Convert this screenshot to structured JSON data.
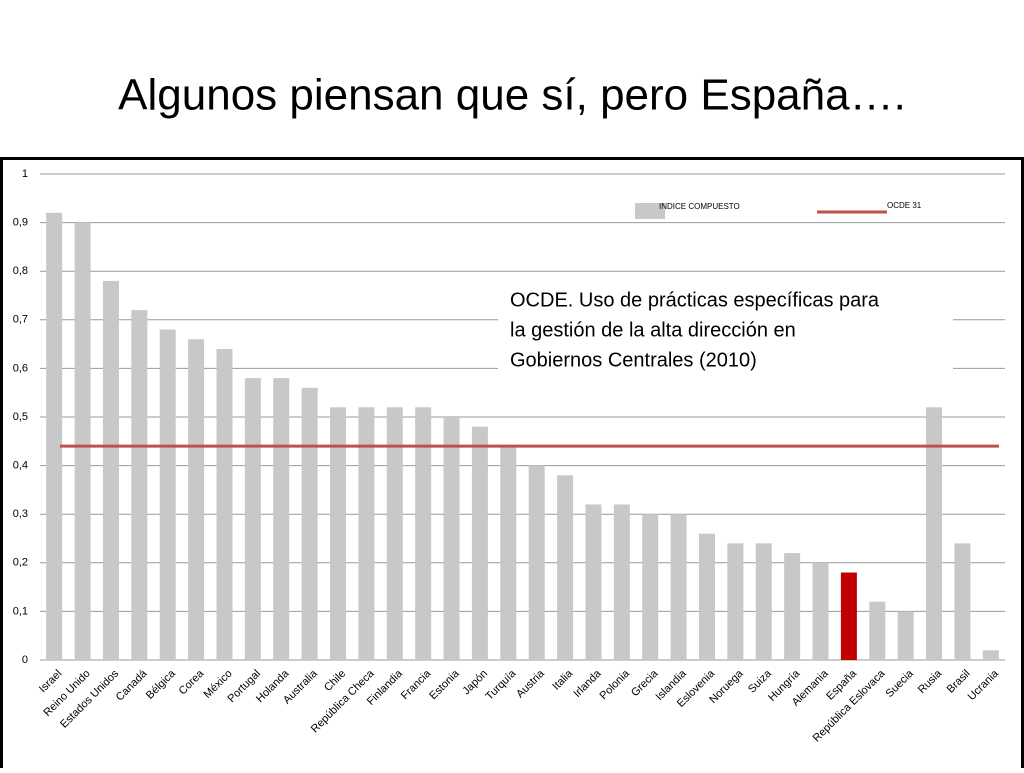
{
  "title": "Algunos piensan que sí, pero España….",
  "chart_data": {
    "type": "bar",
    "categories": [
      "Israel",
      "Reino Unido",
      "Estados Unidos",
      "Canadá",
      "Bélgica",
      "Corea",
      "México",
      "Portugal",
      "Holanda",
      "Australia",
      "Chile",
      "República Checa",
      "Finlandia",
      "Francia",
      "Estonia",
      "Japón",
      "Turquía",
      "Austria",
      "Italia",
      "Irlanda",
      "Polonia",
      "Grecia",
      "Islandia",
      "Eslovenia",
      "Noruega",
      "Suiza",
      "Hungría",
      "Alemania",
      "España",
      "República Eslovaca",
      "Suecia",
      "Rusia",
      "Brasil",
      "Ucrania"
    ],
    "series": [
      {
        "name": "INDICE COMPUESTO",
        "color": "#c8c8c8",
        "values": [
          0.92,
          0.9,
          0.78,
          0.72,
          0.68,
          0.66,
          0.64,
          0.58,
          0.58,
          0.56,
          0.52,
          0.52,
          0.52,
          0.52,
          0.5,
          0.48,
          0.44,
          0.4,
          0.38,
          0.32,
          0.32,
          0.3,
          0.3,
          0.26,
          0.24,
          0.24,
          0.22,
          0.2,
          0.18,
          0.12,
          0.1,
          0.52,
          0.24,
          0.02
        ],
        "colors": [
          "#c8c8c8",
          "#c8c8c8",
          "#c8c8c8",
          "#c8c8c8",
          "#c8c8c8",
          "#c8c8c8",
          "#c8c8c8",
          "#c8c8c8",
          "#c8c8c8",
          "#c8c8c8",
          "#c8c8c8",
          "#c8c8c8",
          "#c8c8c8",
          "#c8c8c8",
          "#c8c8c8",
          "#c8c8c8",
          "#c8c8c8",
          "#c8c8c8",
          "#c8c8c8",
          "#c8c8c8",
          "#c8c8c8",
          "#c8c8c8",
          "#c8c8c8",
          "#c8c8c8",
          "#c8c8c8",
          "#c8c8c8",
          "#c8c8c8",
          "#c8c8c8",
          "#c00000",
          "#c8c8c8",
          "#c8c8c8",
          "#c8c8c8",
          "#c8c8c8",
          "#c8c8c8"
        ]
      }
    ],
    "reference_line": {
      "name": "OCDE 31",
      "value": 0.44,
      "color": "#c0504d"
    },
    "annotation": [
      "OCDE. Uso de prácticas específicas para",
      "la gestión de la alta dirección en",
      "Gobiernos Centrales (2010)"
    ],
    "ylim": [
      0,
      1
    ],
    "yticks": [
      0,
      {
        "value": 0.1,
        "label": "0,1"
      },
      {
        "value": 0.2,
        "label": "0,2"
      },
      {
        "value": 0.3,
        "label": "0,3"
      },
      {
        "value": 0.4,
        "label": "0,4"
      },
      {
        "value": 0.5,
        "label": "0,5"
      },
      {
        "value": 0.6,
        "label": "0,6"
      },
      {
        "value": 0.7,
        "label": "0,7"
      },
      {
        "value": 0.8,
        "label": "0,8"
      },
      {
        "value": 0.9,
        "label": "0,9"
      },
      1
    ],
    "grid": true
  }
}
